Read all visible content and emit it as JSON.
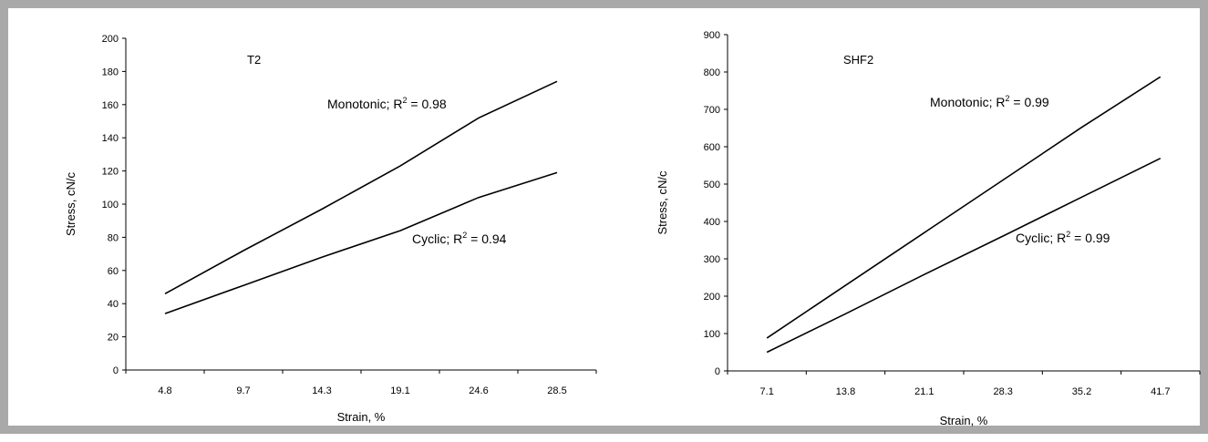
{
  "chart_data": [
    {
      "type": "line",
      "title": "T2",
      "xlabel": "Strain, %",
      "ylabel": "Stress, cN/c",
      "categories": [
        "4.8",
        "9.7",
        "14.3",
        "19.1",
        "24.6",
        "28.5"
      ],
      "ylim": [
        0,
        200
      ],
      "yticks": [
        0,
        20,
        40,
        60,
        80,
        100,
        120,
        140,
        160,
        180,
        200
      ],
      "grid": false,
      "series": [
        {
          "label_text": "Monotonic; R",
          "label_sup": "2",
          "label_rest": " = 0.98",
          "values": [
            46,
            72,
            97,
            123,
            152,
            174
          ]
        },
        {
          "label_text": "Cyclic; R",
          "label_sup": "2",
          "label_rest": " = 0.94",
          "values": [
            34,
            51,
            68,
            84,
            104,
            119
          ]
        }
      ]
    },
    {
      "type": "line",
      "title": "SHF2",
      "xlabel": "Strain, %",
      "ylabel": "Stress, cN/c",
      "categories": [
        "7.1",
        "13.8",
        "21.1",
        "28.3",
        "35.2",
        "41.7"
      ],
      "ylim": [
        0,
        900
      ],
      "yticks": [
        0,
        100,
        200,
        300,
        400,
        500,
        600,
        700,
        800,
        900
      ],
      "grid": false,
      "series": [
        {
          "label_text": "Monotonic; R",
          "label_sup": "2",
          "label_rest": " = 0.99",
          "values": [
            88,
            229,
            370,
            511,
            652,
            787
          ]
        },
        {
          "label_text": "Cyclic; R",
          "label_sup": "2",
          "label_rest": " = 0.99",
          "values": [
            50,
            153,
            258,
            361,
            465,
            569
          ]
        }
      ]
    }
  ]
}
